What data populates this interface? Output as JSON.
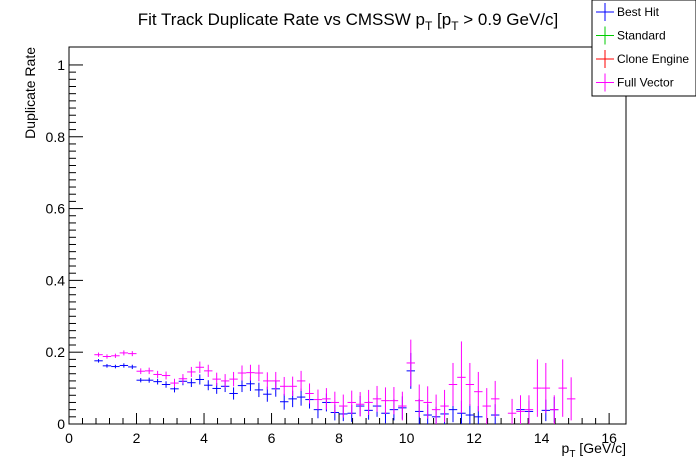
{
  "chart_data": {
    "type": "scatter",
    "title_main": "Fit Track Duplicate Rate vs CMSSW p",
    "title_sub1": "T",
    "title_mid": " [p",
    "title_sub2": "T",
    "title_end": " > 0.9 GeV/c]",
    "xlabel_main": "p",
    "xlabel_sub": "T",
    "xlabel_end": " [GeV/c]",
    "ylabel": "Duplicate Rate",
    "xlim": [
      0,
      16.5
    ],
    "ylim": [
      0,
      1.05
    ],
    "x_ticks": [
      0,
      2,
      4,
      6,
      8,
      10,
      12,
      14,
      16
    ],
    "x_tick_labels": [
      "0",
      "2",
      "4",
      "6",
      "8",
      "10",
      "12",
      "14",
      "16"
    ],
    "y_ticks": [
      0,
      0.2,
      0.4,
      0.6,
      0.8,
      1
    ],
    "y_tick_labels": [
      "0",
      "0.2",
      "0.4",
      "0.6",
      "0.8",
      "1"
    ],
    "legend": [
      {
        "name": "Best Hit",
        "color": "#0000ff"
      },
      {
        "name": "Standard",
        "color": "#00cc00"
      },
      {
        "name": "Clone Engine",
        "color": "#ff0000"
      },
      {
        "name": "Full Vector",
        "color": "#ff00ff"
      }
    ],
    "bin_half_width": 0.125,
    "series": [
      {
        "name": "Best Hit",
        "color": "#0000ff",
        "points": [
          [
            0.875,
            0.176,
            0.005
          ],
          [
            1.125,
            0.162,
            0.005
          ],
          [
            1.375,
            0.16,
            0.005
          ],
          [
            1.625,
            0.163,
            0.006
          ],
          [
            1.875,
            0.159,
            0.006
          ],
          [
            2.125,
            0.122,
            0.006
          ],
          [
            2.375,
            0.122,
            0.007
          ],
          [
            2.625,
            0.118,
            0.008
          ],
          [
            2.875,
            0.11,
            0.009
          ],
          [
            3.125,
            0.098,
            0.01
          ],
          [
            3.375,
            0.119,
            0.011
          ],
          [
            3.625,
            0.115,
            0.012
          ],
          [
            3.875,
            0.124,
            0.014
          ],
          [
            4.125,
            0.108,
            0.014
          ],
          [
            4.375,
            0.099,
            0.015
          ],
          [
            4.625,
            0.105,
            0.016
          ],
          [
            4.875,
            0.085,
            0.017
          ],
          [
            5.125,
            0.107,
            0.018
          ],
          [
            5.375,
            0.112,
            0.02
          ],
          [
            5.625,
            0.095,
            0.02
          ],
          [
            5.875,
            0.083,
            0.021
          ],
          [
            6.125,
            0.098,
            0.022
          ],
          [
            6.375,
            0.062,
            0.022
          ],
          [
            6.625,
            0.07,
            0.023
          ],
          [
            6.875,
            0.075,
            0.024
          ],
          [
            7.125,
            0.068,
            0.025
          ],
          [
            7.375,
            0.04,
            0.024
          ],
          [
            7.625,
            0.06,
            0.025
          ],
          [
            7.875,
            0.032,
            0.022
          ],
          [
            8.125,
            0.028,
            0.02
          ],
          [
            8.375,
            0.03,
            0.024
          ],
          [
            8.625,
            0.05,
            0.028
          ],
          [
            8.875,
            0.038,
            0.026
          ],
          [
            9.125,
            0.05,
            0.03
          ],
          [
            9.375,
            0.03,
            0.028
          ],
          [
            9.625,
            0.04,
            0.03
          ],
          [
            9.875,
            0.045,
            0.032
          ],
          [
            10.125,
            0.148,
            0.05
          ],
          [
            10.375,
            0.035,
            0.035
          ],
          [
            10.625,
            0.025,
            0.03
          ],
          [
            10.875,
            0.02,
            0.028
          ],
          [
            11.125,
            0.028,
            0.03
          ],
          [
            11.375,
            0.04,
            0.035
          ],
          [
            11.625,
            0.03,
            0.035
          ],
          [
            11.875,
            0.025,
            0.03
          ],
          [
            12.125,
            0.02,
            0.03
          ],
          [
            12.625,
            0.025,
            0.03
          ],
          [
            13.375,
            0.04,
            0.035
          ],
          [
            13.625,
            0.035,
            0.03
          ],
          [
            14.125,
            0.038,
            0.03
          ],
          [
            14.375,
            0.04,
            0.035
          ]
        ]
      },
      {
        "name": "Full Vector",
        "color": "#ff00ff",
        "points": [
          [
            0.875,
            0.193,
            0.006
          ],
          [
            1.125,
            0.188,
            0.006
          ],
          [
            1.375,
            0.19,
            0.006
          ],
          [
            1.625,
            0.198,
            0.007
          ],
          [
            1.875,
            0.196,
            0.007
          ],
          [
            2.125,
            0.147,
            0.008
          ],
          [
            2.375,
            0.148,
            0.009
          ],
          [
            2.625,
            0.138,
            0.01
          ],
          [
            2.875,
            0.135,
            0.011
          ],
          [
            3.125,
            0.114,
            0.012
          ],
          [
            3.375,
            0.126,
            0.013
          ],
          [
            3.625,
            0.145,
            0.014
          ],
          [
            3.875,
            0.158,
            0.016
          ],
          [
            4.125,
            0.148,
            0.017
          ],
          [
            4.375,
            0.125,
            0.018
          ],
          [
            4.625,
            0.12,
            0.019
          ],
          [
            4.875,
            0.125,
            0.02
          ],
          [
            5.125,
            0.142,
            0.021
          ],
          [
            5.375,
            0.143,
            0.022
          ],
          [
            5.625,
            0.142,
            0.023
          ],
          [
            5.875,
            0.12,
            0.024
          ],
          [
            6.125,
            0.12,
            0.025
          ],
          [
            6.375,
            0.105,
            0.026
          ],
          [
            6.625,
            0.105,
            0.027
          ],
          [
            6.875,
            0.12,
            0.028
          ],
          [
            7.125,
            0.085,
            0.028
          ],
          [
            7.375,
            0.068,
            0.028
          ],
          [
            7.625,
            0.07,
            0.03
          ],
          [
            7.875,
            0.06,
            0.03
          ],
          [
            8.125,
            0.05,
            0.032
          ],
          [
            8.375,
            0.06,
            0.033
          ],
          [
            8.625,
            0.055,
            0.034
          ],
          [
            8.875,
            0.06,
            0.035
          ],
          [
            9.125,
            0.07,
            0.036
          ],
          [
            9.375,
            0.065,
            0.037
          ],
          [
            9.625,
            0.065,
            0.038
          ],
          [
            9.875,
            0.05,
            0.04
          ],
          [
            10.125,
            0.17,
            0.065
          ],
          [
            10.375,
            0.065,
            0.045
          ],
          [
            10.625,
            0.06,
            0.045
          ],
          [
            10.875,
            0.04,
            0.042
          ],
          [
            11.125,
            0.05,
            0.045
          ],
          [
            11.375,
            0.11,
            0.06
          ],
          [
            11.625,
            0.13,
            0.1
          ],
          [
            11.875,
            0.11,
            0.06
          ],
          [
            12.125,
            0.09,
            0.055
          ],
          [
            12.375,
            0.05,
            0.05
          ],
          [
            12.625,
            0.07,
            0.05
          ],
          [
            13.125,
            0.03,
            0.04
          ],
          [
            13.375,
            0.035,
            0.045
          ],
          [
            13.625,
            0.04,
            0.04
          ],
          [
            13.875,
            0.1,
            0.08
          ],
          [
            14.125,
            0.1,
            0.07
          ],
          [
            14.375,
            0.04,
            0.04
          ],
          [
            14.625,
            0.1,
            0.08
          ],
          [
            14.875,
            0.07,
            0.06
          ]
        ]
      }
    ]
  }
}
